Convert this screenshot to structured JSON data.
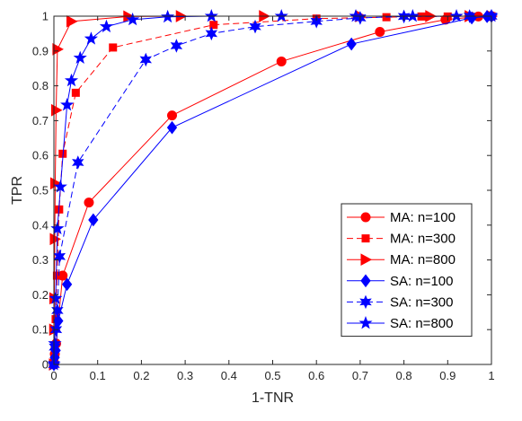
{
  "chart_data": {
    "type": "line",
    "xlabel": "1-TNR",
    "ylabel": "TPR",
    "xlim": [
      0,
      1
    ],
    "ylim": [
      0,
      1
    ],
    "xticks": [
      "0",
      "0.1",
      "0.2",
      "0.3",
      "0.4",
      "0.5",
      "0.6",
      "0.7",
      "0.8",
      "0.9",
      "1"
    ],
    "yticks": [
      "0",
      "0.1",
      "0.2",
      "0.3",
      "0.4",
      "0.5",
      "0.6",
      "0.7",
      "0.8",
      "0.9",
      "1"
    ],
    "grid": false,
    "legend_position": "bottom-right",
    "series": [
      {
        "name": "MA: n=100",
        "color": "#ff0000",
        "line_style": "solid",
        "marker": "circle",
        "x": [
          0,
          0.002,
          0.005,
          0.02,
          0.08,
          0.27,
          0.52,
          0.745,
          0.895,
          0.97,
          1
        ],
        "y": [
          0,
          0.03,
          0.06,
          0.255,
          0.465,
          0.715,
          0.87,
          0.955,
          0.99,
          0.999,
          1
        ]
      },
      {
        "name": "MA: n=300",
        "color": "#ff0000",
        "line_style": "dashed",
        "marker": "square",
        "x": [
          0,
          0.001,
          0.002,
          0.004,
          0.007,
          0.012,
          0.02,
          0.05,
          0.135,
          0.365,
          0.6,
          0.76,
          0.84,
          0.9,
          0.95,
          1
        ],
        "y": [
          0,
          0.02,
          0.055,
          0.13,
          0.255,
          0.445,
          0.605,
          0.78,
          0.91,
          0.975,
          0.993,
          0.997,
          0.999,
          0.999,
          1,
          1
        ],
        "marker_stride": 1
      },
      {
        "name": "MA: n=800",
        "color": "#ff0000",
        "line_style": "solid",
        "marker": "triangle-right",
        "x": [
          0,
          0.0005,
          0.001,
          0.002,
          0.003,
          0.005,
          0.008,
          0.04,
          0.17,
          0.29,
          0.48,
          0.7,
          0.86,
          0.95,
          1
        ],
        "y": [
          0,
          0.1,
          0.19,
          0.36,
          0.52,
          0.73,
          0.905,
          0.985,
          0.999,
          1,
          1,
          1,
          1,
          1,
          1
        ],
        "marker_stride": 1
      },
      {
        "name": "SA: n=100",
        "color": "#0000ff",
        "line_style": "solid",
        "marker": "diamond",
        "x": [
          0,
          0.002,
          0.004,
          0.01,
          0.03,
          0.09,
          0.27,
          0.68,
          0.955,
          0.99,
          1
        ],
        "y": [
          0,
          0.02,
          0.04,
          0.125,
          0.23,
          0.415,
          0.68,
          0.92,
          0.995,
          0.999,
          1
        ]
      },
      {
        "name": "SA: n=300",
        "color": "#0000ff",
        "line_style": "dashed",
        "marker": "star6",
        "x": [
          0,
          0.002,
          0.005,
          0.008,
          0.013,
          0.055,
          0.21,
          0.28,
          0.36,
          0.46,
          0.6,
          0.7,
          0.8,
          0.95,
          1
        ],
        "y": [
          0,
          0.05,
          0.1,
          0.155,
          0.31,
          0.58,
          0.875,
          0.915,
          0.95,
          0.97,
          0.985,
          0.995,
          0.999,
          1,
          1
        ]
      },
      {
        "name": "SA: n=800",
        "color": "#0000ff",
        "line_style": "solid",
        "marker": "pentagram",
        "x": [
          0,
          0.002,
          0.004,
          0.008,
          0.015,
          0.03,
          0.04,
          0.06,
          0.085,
          0.12,
          0.18,
          0.26,
          0.36,
          0.52,
          0.69,
          0.82,
          0.92,
          1
        ],
        "y": [
          0,
          0.06,
          0.19,
          0.39,
          0.51,
          0.745,
          0.815,
          0.88,
          0.935,
          0.97,
          0.99,
          0.998,
          1,
          1,
          1,
          1,
          1,
          1
        ]
      }
    ],
    "legend_entries": [
      "MA: n=100",
      "MA: n=300",
      "MA: n=800",
      "SA: n=100",
      "SA: n=300",
      "SA: n=800"
    ]
  }
}
